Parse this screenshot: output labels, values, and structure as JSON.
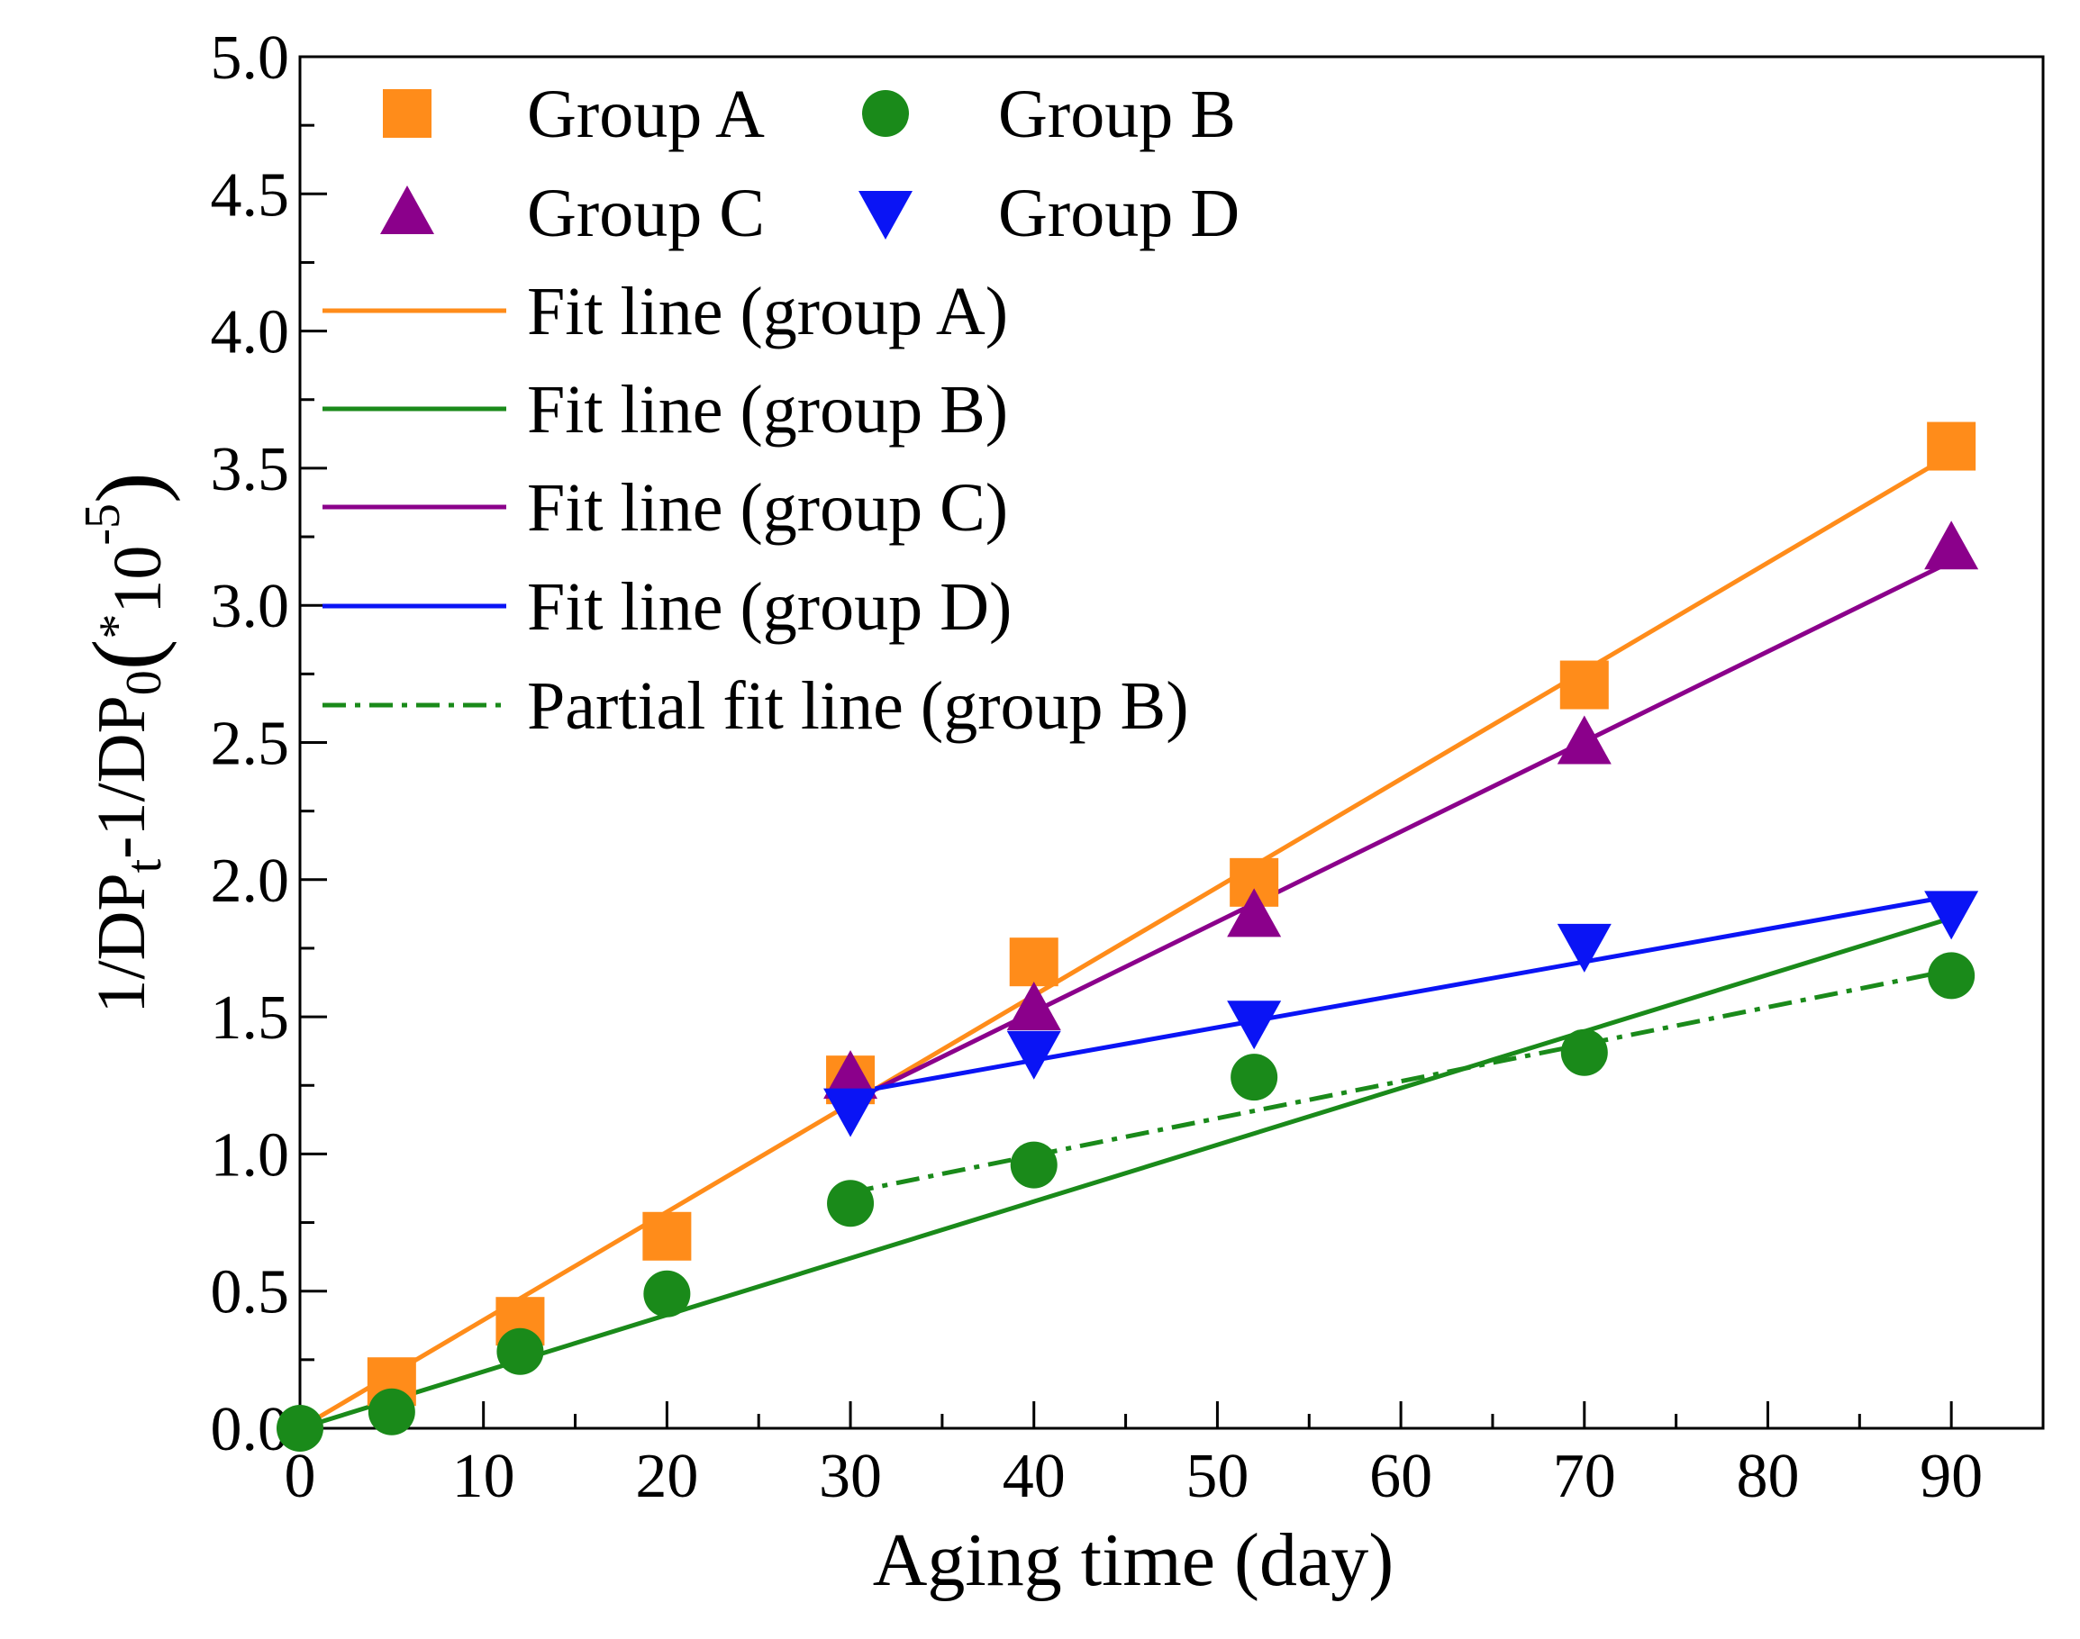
{
  "chart_data": {
    "type": "scatter",
    "xlabel": "Aging time (day)",
    "ylabel": {
      "parts": [
        "1/DP",
        "t",
        "-1/DP",
        "0",
        "(",
        "*",
        "10",
        "-5",
        ")"
      ]
    },
    "xlim": [
      0,
      95
    ],
    "ylim": [
      0,
      5
    ],
    "x_ticks": [
      "0",
      "10",
      "20",
      "30",
      "40",
      "50",
      "60",
      "70",
      "80",
      "90"
    ],
    "y_ticks": [
      "0.0",
      "0.5",
      "1.0",
      "1.5",
      "2.0",
      "2.5",
      "3.0",
      "3.5",
      "4.0",
      "4.5",
      "5.0"
    ],
    "grid": false,
    "legend_position": "top-left",
    "series": [
      {
        "name": "Group A",
        "marker": "square",
        "color": "#ff8c1a",
        "x": [
          5,
          12,
          20,
          30,
          40,
          52,
          70,
          90
        ],
        "y": [
          0.17,
          0.39,
          0.7,
          1.27,
          1.7,
          1.99,
          2.71,
          3.58
        ]
      },
      {
        "name": "Group B",
        "marker": "circle",
        "color": "#1a8a1a",
        "x": [
          0,
          5,
          12,
          20,
          30,
          40,
          52,
          70,
          90
        ],
        "y": [
          0.0,
          0.06,
          0.28,
          0.49,
          0.82,
          0.96,
          1.28,
          1.37,
          1.65
        ]
      },
      {
        "name": "Group C",
        "marker": "triangle-up",
        "color": "#8b008b",
        "x": [
          30,
          40,
          52,
          70,
          90
        ],
        "y": [
          1.28,
          1.53,
          1.87,
          2.5,
          3.21
        ]
      },
      {
        "name": "Group D",
        "marker": "triangle-down",
        "color": "#0a14f5",
        "x": [
          30,
          40,
          52,
          70,
          90
        ],
        "y": [
          1.16,
          1.37,
          1.48,
          1.76,
          1.88
        ]
      }
    ],
    "fit_lines": [
      {
        "name": "Fit line (group A)",
        "color": "#ff8c1a",
        "style": "solid",
        "x": [
          0,
          90
        ],
        "y": [
          0.0,
          3.55
        ]
      },
      {
        "name": "Fit line (group B)",
        "color": "#1a8a1a",
        "style": "solid",
        "x": [
          0,
          90
        ],
        "y": [
          0.0,
          1.86
        ]
      },
      {
        "name": "Fit line (group C)",
        "color": "#8b008b",
        "style": "solid",
        "x": [
          30,
          90
        ],
        "y": [
          1.19,
          3.16
        ]
      },
      {
        "name": "Fit line (group D)",
        "color": "#0a14f5",
        "style": "solid",
        "x": [
          29,
          90
        ],
        "y": [
          1.21,
          1.94
        ]
      },
      {
        "name": "Partial fit line (group B)",
        "color": "#1a8a1a",
        "style": "dashdot",
        "x": [
          30,
          90
        ],
        "y": [
          0.86,
          1.67
        ]
      }
    ]
  }
}
